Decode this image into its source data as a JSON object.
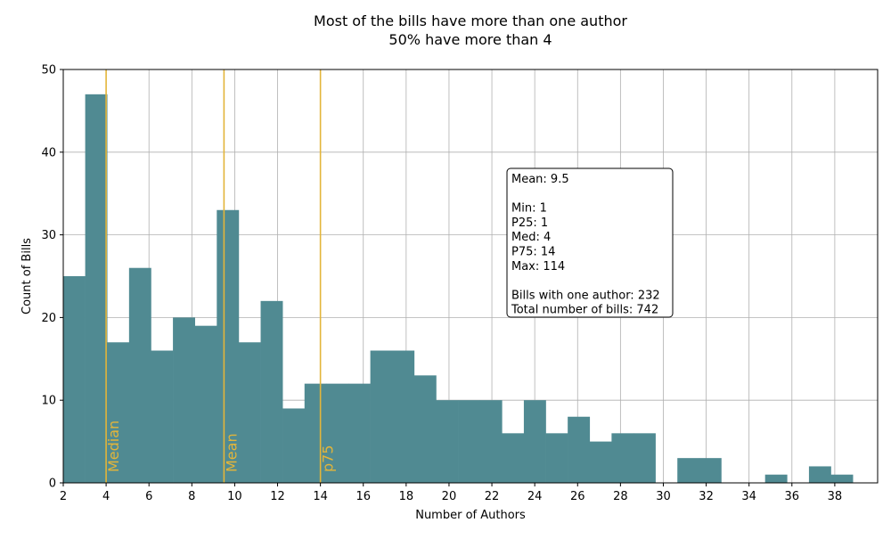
{
  "chart_data": {
    "type": "bar",
    "title": "Most of the bills have more than one author",
    "subtitle": "50% have more than 4",
    "xlabel": "Number of Authors",
    "ylabel": "Count of Bills",
    "xlim": [
      2,
      40
    ],
    "ylim": [
      0,
      50
    ],
    "xticks": [
      2,
      4,
      6,
      8,
      10,
      12,
      14,
      16,
      18,
      20,
      22,
      24,
      26,
      28,
      30,
      32,
      34,
      36,
      38
    ],
    "yticks": [
      0,
      10,
      20,
      30,
      40,
      50
    ],
    "grid": true,
    "bar_color": "#508a92",
    "bin_width": 1.0234,
    "bins_start": [
      2.0,
      3.0234,
      4.0468,
      5.0702,
      6.0936,
      7.117,
      8.1404,
      9.1638,
      10.1872,
      11.2106,
      12.234,
      13.2574,
      14.2808,
      15.3042,
      16.3276,
      17.351,
      18.3744,
      19.3978,
      20.4212,
      21.4446,
      22.468,
      23.4914,
      24.5148,
      25.5382,
      26.5616,
      27.585,
      28.6084,
      29.6318,
      30.6552,
      31.6786,
      32.702,
      33.7254,
      34.7488,
      35.7722,
      36.7956,
      37.819
    ],
    "values": [
      25,
      47,
      17,
      26,
      16,
      20,
      19,
      33,
      17,
      22,
      9,
      12,
      12,
      12,
      16,
      16,
      13,
      10,
      10,
      10,
      6,
      10,
      6,
      8,
      5,
      6,
      6,
      0,
      3,
      3,
      0,
      0,
      1,
      0,
      2,
      1
    ],
    "reference_lines": [
      {
        "x": 4,
        "label": "Median",
        "color": "#e3b53a"
      },
      {
        "x": 9.5,
        "label": "Mean",
        "color": "#e3b53a"
      },
      {
        "x": 14,
        "label": "p75",
        "color": "#e3b53a"
      }
    ],
    "stats_box": [
      "Mean: 9.5",
      "",
      "Min: 1",
      "P25: 1",
      "Med: 4",
      "P75: 14",
      "Max: 114",
      "",
      "Bills with one author: 232",
      "Total number of bills: 742"
    ]
  }
}
